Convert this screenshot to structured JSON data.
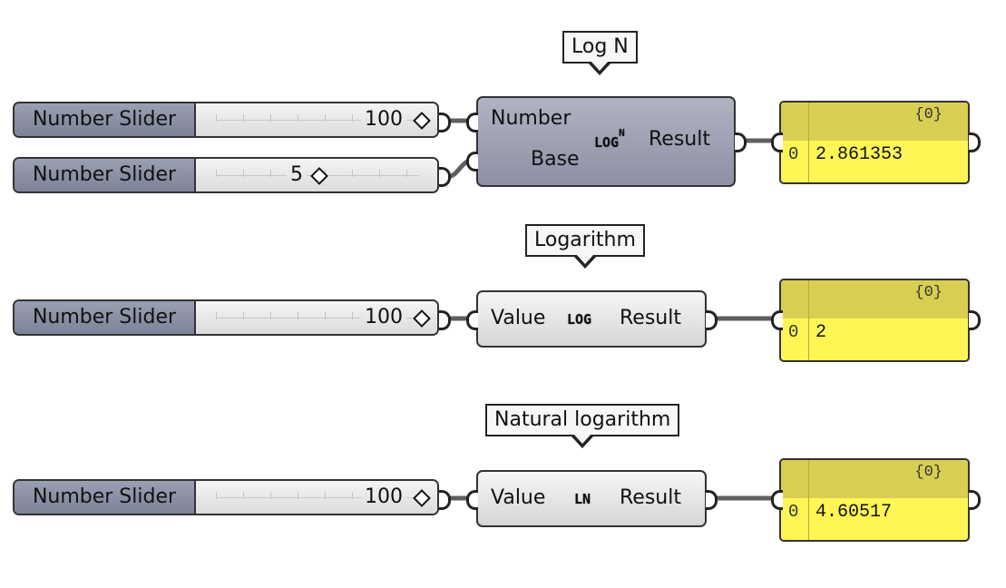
{
  "row1": {
    "callout": "Log N",
    "slider_a": {
      "name": "Number Slider",
      "value": "100"
    },
    "slider_b": {
      "name": "Number Slider",
      "value": "5"
    },
    "component": {
      "input1": "Number",
      "input2": "Base",
      "icon": "LOG",
      "icon_sup": "N",
      "output": "Result"
    },
    "panel": {
      "path": "{0}",
      "index": "0",
      "value": "2.861353"
    }
  },
  "row2": {
    "callout": "Logarithm",
    "slider": {
      "name": "Number Slider",
      "value": "100"
    },
    "component": {
      "input": "Value",
      "icon": "LOG",
      "output": "Result"
    },
    "panel": {
      "path": "{0}",
      "index": "0",
      "value": "2"
    }
  },
  "row3": {
    "callout": "Natural logarithm",
    "slider": {
      "name": "Number Slider",
      "value": "100"
    },
    "component": {
      "input": "Value",
      "icon": "LN",
      "output": "Result"
    },
    "panel": {
      "path": "{0}",
      "index": "0",
      "value": "4.60517"
    }
  },
  "colors": {
    "panel_fill": "#fff656",
    "panel_header": "#d8ce52",
    "slider_name_bg": "#8a8fa3",
    "wire": "#606060"
  }
}
